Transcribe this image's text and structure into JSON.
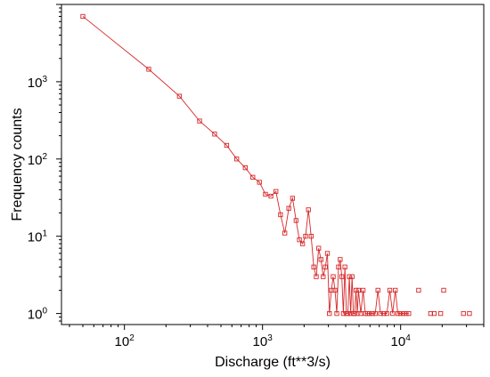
{
  "chart_data": {
    "type": "line",
    "title": "",
    "xlabel": "Discharge (ft**3/s)",
    "ylabel": "Frequency counts",
    "x_scale": "log",
    "y_scale": "log",
    "xlim": [
      35,
      40000
    ],
    "ylim": [
      0.72,
      10000
    ],
    "x_ticks": [
      {
        "base": "10",
        "exp": "2",
        "value": 100
      },
      {
        "base": "10",
        "exp": "3",
        "value": 1000
      },
      {
        "base": "10",
        "exp": "4",
        "value": 10000
      }
    ],
    "y_ticks": [
      {
        "base": "10",
        "exp": "0",
        "value": 1
      },
      {
        "base": "10",
        "exp": "1",
        "value": 10
      },
      {
        "base": "10",
        "exp": "2",
        "value": 100
      },
      {
        "base": "10",
        "exp": "3",
        "value": 1000
      }
    ],
    "grid": false,
    "legend": "none",
    "marker": "open-square",
    "color": "#d62728",
    "series": [
      {
        "x": [
          50,
          150,
          250,
          350,
          450,
          550,
          650,
          750,
          850,
          950,
          1050,
          1150,
          1250,
          1350,
          1450,
          1550,
          1650,
          1750,
          1850,
          1950,
          2050,
          2150,
          2250,
          2350,
          2450,
          2550,
          2650,
          2750,
          2850,
          2950,
          3050,
          3150,
          3250,
          3350,
          3450,
          3550,
          3650,
          3750,
          3850,
          3950,
          4050,
          4150,
          4250,
          4350,
          4450,
          4550,
          4650,
          4750,
          4850,
          4950,
          5150,
          5350,
          5550,
          5750,
          5950,
          6250,
          6550,
          6850,
          7150,
          7550,
          7950,
          8350,
          8750,
          9150,
          9550,
          9950,
          10450,
          10950,
          11450
        ],
        "y": [
          7000,
          1450,
          650,
          310,
          210,
          150,
          100,
          77,
          58,
          50,
          35,
          33,
          38,
          19,
          11,
          23,
          31,
          16,
          9,
          8,
          10,
          22,
          10,
          4,
          3,
          7,
          5,
          3,
          4,
          6,
          1,
          2,
          3,
          2,
          1,
          4,
          5,
          3,
          1,
          4,
          1,
          1,
          3,
          1,
          3,
          1,
          1,
          2,
          1,
          2,
          1,
          2,
          1,
          1,
          1,
          1,
          1,
          2,
          1,
          1,
          1,
          2,
          1,
          2,
          1,
          1,
          1,
          1,
          1
        ]
      }
    ],
    "isolated_points": {
      "x": [
        13500,
        16500,
        17500,
        19500,
        20500,
        28500,
        31500
      ],
      "y": [
        2,
        1,
        1,
        1,
        2,
        1,
        1
      ]
    }
  }
}
